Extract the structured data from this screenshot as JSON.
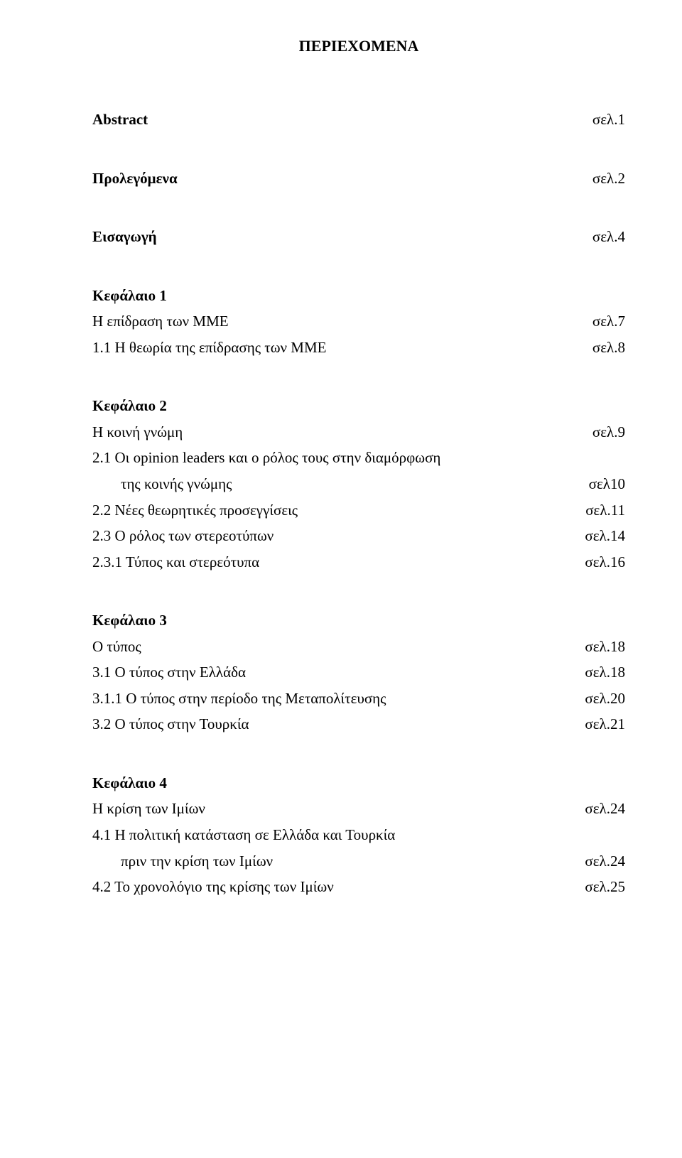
{
  "title": "ΠΕΡΙΕΧΟΜΕΝΑ",
  "simple": {
    "abstract": {
      "label": "Abstract",
      "page": "σελ.1"
    },
    "prolegomena": {
      "label": "Προλεγόμενα",
      "page": "σελ.2"
    },
    "intro": {
      "label": "Εισαγωγή",
      "page": "σελ.4"
    }
  },
  "ch1": {
    "head": "Κεφάλαιο 1",
    "r1": {
      "label": "Η επίδραση των ΜΜΕ",
      "page": "σελ.7"
    },
    "r2": {
      "label": "1.1 Η θεωρία της επίδρασης των ΜΜΕ",
      "page": "σελ.8"
    }
  },
  "ch2": {
    "head": "Κεφάλαιο 2",
    "r1": {
      "label": "Η κοινή γνώμη",
      "page": "σελ.9"
    },
    "r2a": "2.1 Οι opinion leaders και ο ρόλος τους στην διαμόρφωση",
    "r2b": {
      "label": "της κοινής γνώμης",
      "page": "σελ10"
    },
    "r3": {
      "label": "2.2 Νέες θεωρητικές προσεγγίσεις",
      "page": "σελ.11"
    },
    "r4": {
      "label": "2.3 Ο ρόλος των στερεοτύπων",
      "page": "σελ.14"
    },
    "r5": {
      "label": "2.3.1 Τύπος και στερεότυπα",
      "page": "σελ.16"
    }
  },
  "ch3": {
    "head": "Κεφάλαιο 3",
    "r1": {
      "label": "Ο τύπος",
      "page": "σελ.18"
    },
    "r2": {
      "label": "3.1 Ο τύπος στην Ελλάδα",
      "page": "σελ.18"
    },
    "r3": {
      "label": "3.1.1 Ο τύπος στην περίοδο της Μεταπολίτευσης",
      "page": "σελ.20"
    },
    "r4": {
      "label": "3.2 Ο τύπος στην Τουρκία",
      "page": "σελ.21"
    }
  },
  "ch4": {
    "head": "Κεφάλαιο 4",
    "r1": {
      "label": "Η κρίση των Ιμίων",
      "page": "σελ.24"
    },
    "r2a": "4.1 Η πολιτική κατάσταση σε Ελλάδα και Τουρκία",
    "r2b": {
      "label": "πριν την κρίση των Ιμίων",
      "page": "σελ.24"
    },
    "r3": {
      "label": "4.2 Το χρονολόγιο της κρίσης  των Ιμίων",
      "page": "σελ.25"
    }
  }
}
